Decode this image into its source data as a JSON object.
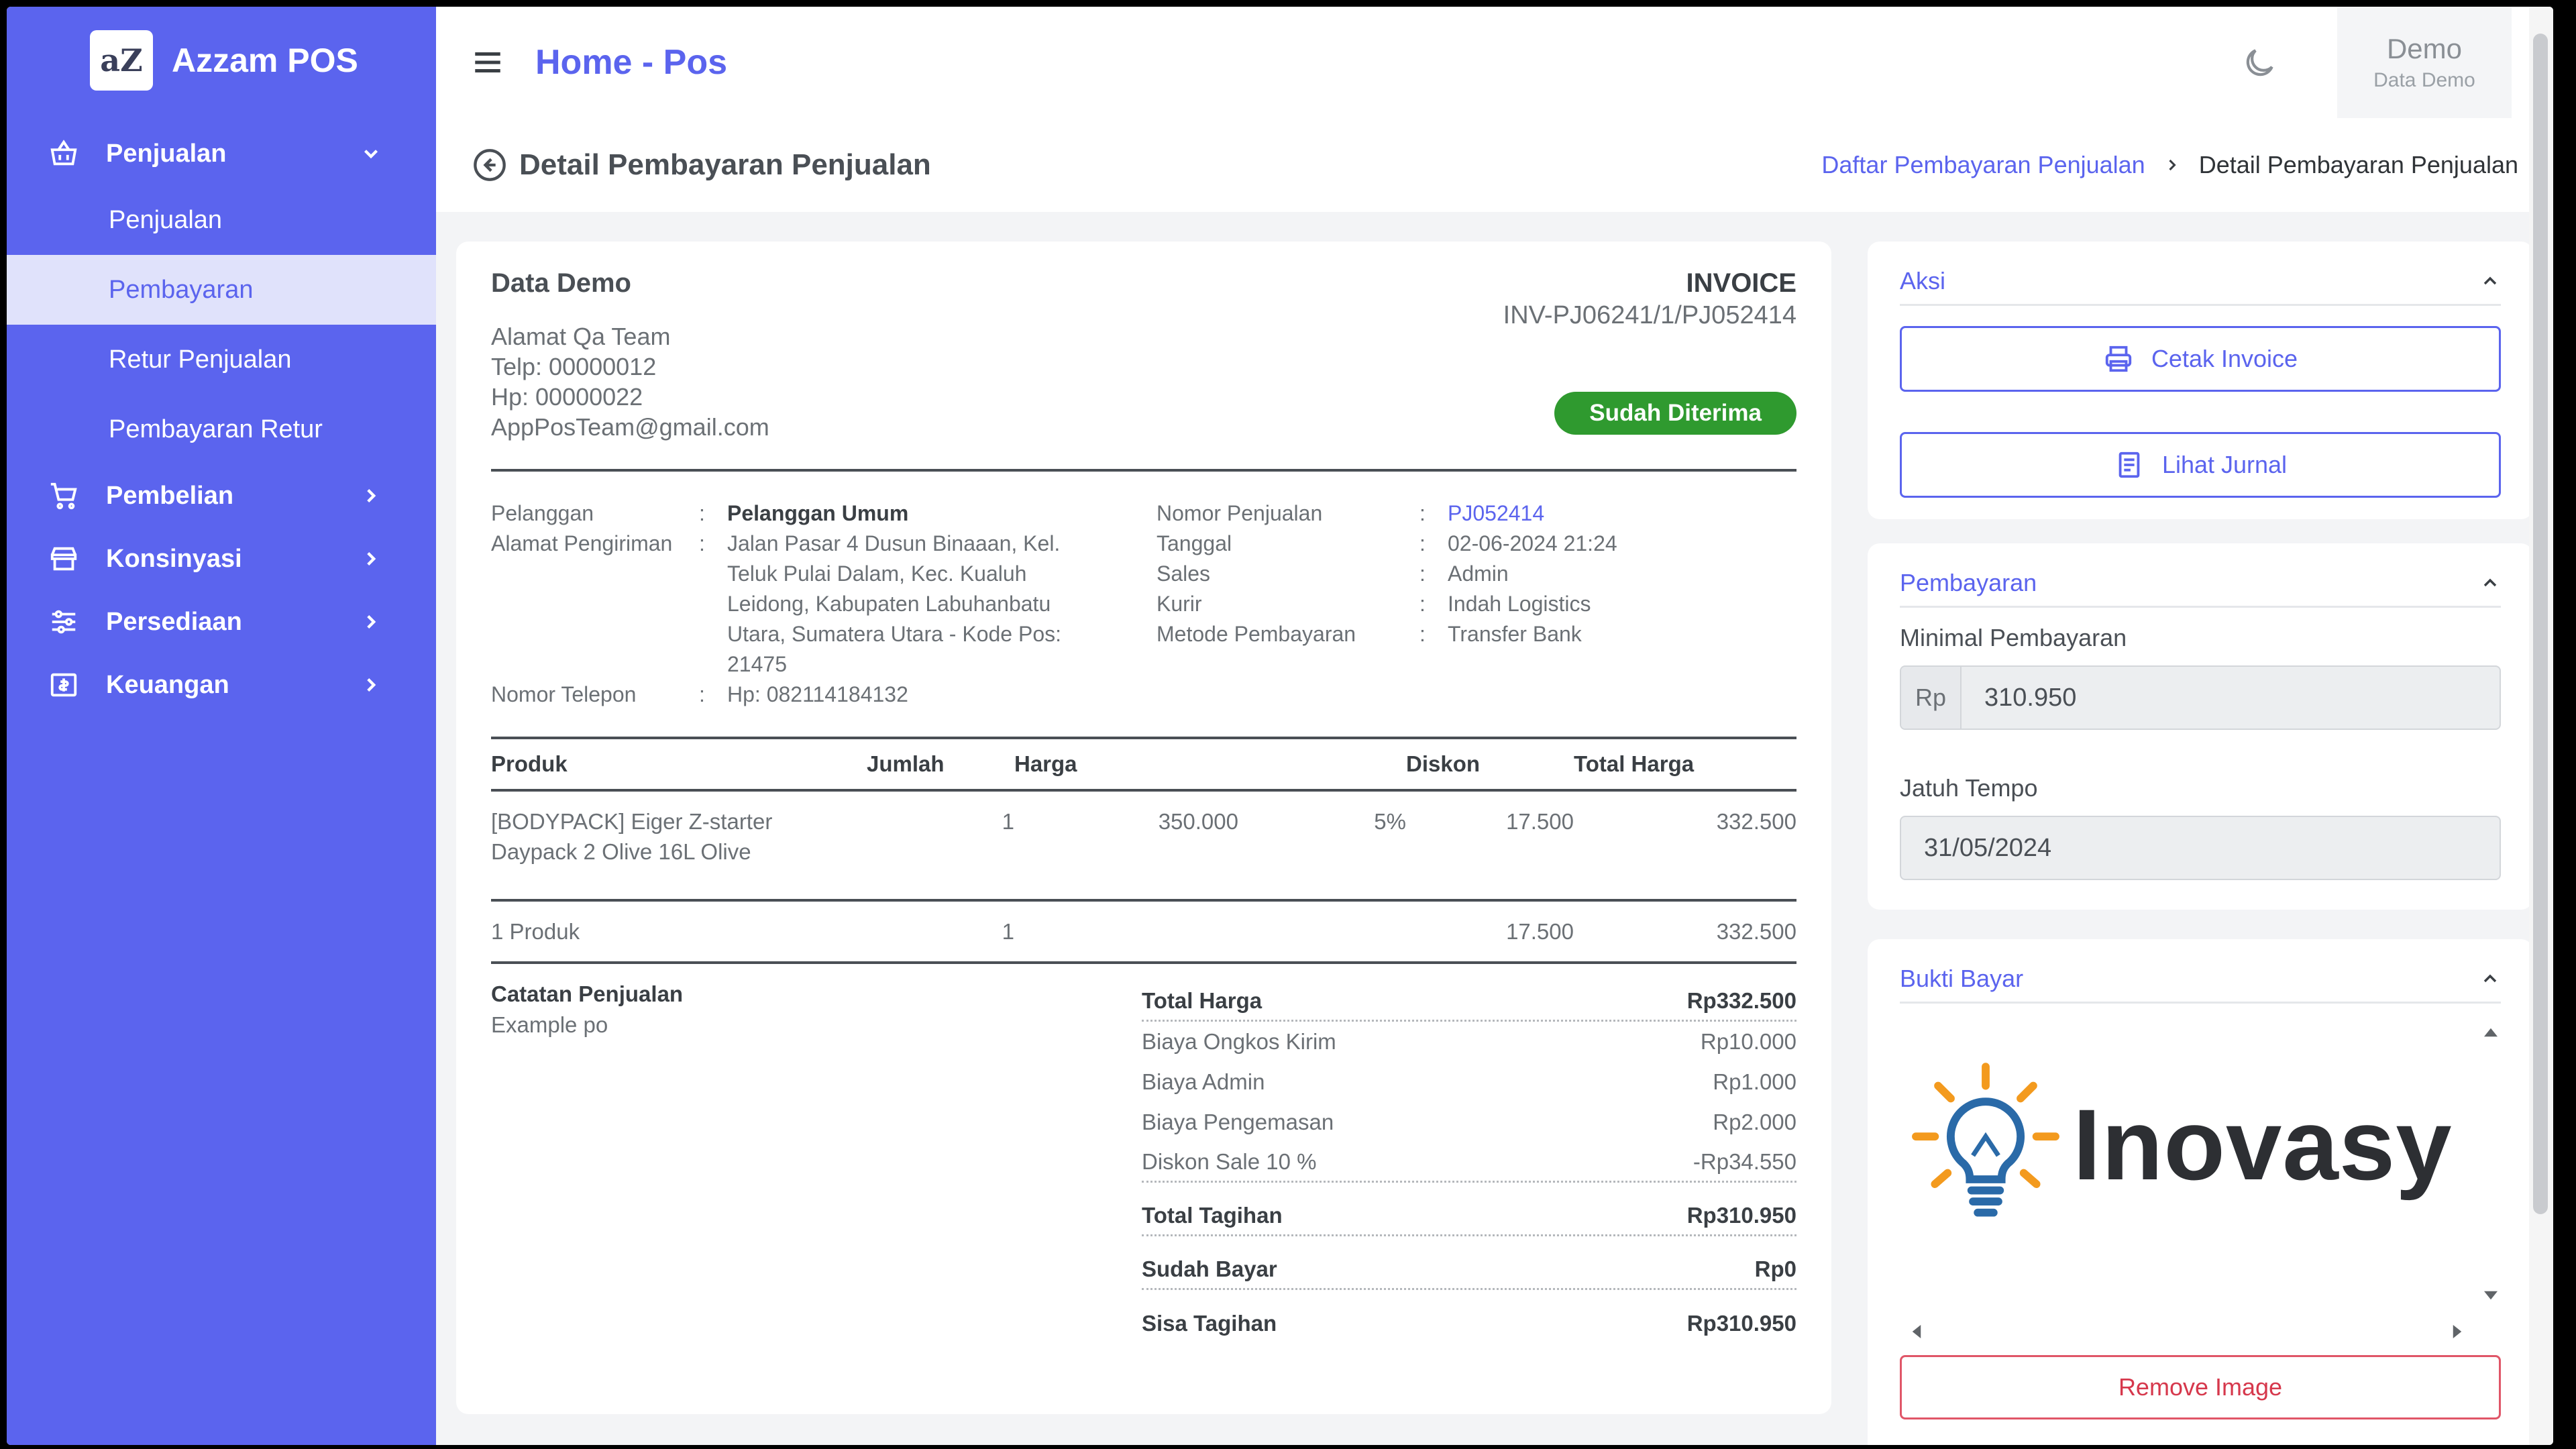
{
  "sidebar": {
    "brand_logo": "aZ",
    "brand_name": "Azzam POS",
    "groups": [
      {
        "label": "Penjualan",
        "icon": "basket-icon"
      },
      {
        "label": "Pembelian",
        "icon": "cart-icon"
      },
      {
        "label": "Konsinyasi",
        "icon": "store-icon"
      },
      {
        "label": "Persediaan",
        "icon": "sliders-icon"
      },
      {
        "label": "Keuangan",
        "icon": "money-icon"
      }
    ],
    "penjualan_items": [
      "Penjualan",
      "Pembayaran",
      "Retur Penjualan",
      "Pembayaran Retur"
    ],
    "active_item": "Pembayaran"
  },
  "topbar": {
    "title": "Home - Pos",
    "user_name": "Demo",
    "user_role": "Data Demo"
  },
  "subheader": {
    "title": "Detail Pembayaran Penjualan",
    "breadcrumb_link": "Daftar Pembayaran Penjualan",
    "breadcrumb_current": "Detail Pembayaran Penjualan"
  },
  "invoice": {
    "company": "Data Demo",
    "address": "Alamat Qa Team",
    "telp": "Telp: 00000012",
    "hp": "Hp: 00000022",
    "email": "AppPosTeam@gmail.com",
    "invoice_label": "INVOICE",
    "invoice_no": "INV-PJ06241/1/PJ052414",
    "status": "Sudah Diterima",
    "info_left": {
      "pelanggan_label": "Pelanggan",
      "pelanggan": "Pelanggan Umum",
      "alamat_label": "Alamat Pengiriman",
      "alamat": "Jalan Pasar 4 Dusun Binaaan, Kel. Teluk Pulai Dalam, Kec. Kualuh Leidong, Kabupaten Labuhanbatu Utara, Sumatera Utara - Kode Pos: 21475",
      "telepon_label": "Nomor Telepon",
      "telepon": "Hp: 082114184132"
    },
    "info_right": {
      "nomor_label": "Nomor Penjualan",
      "nomor": "PJ052414",
      "tanggal_label": "Tanggal",
      "tanggal": "02-06-2024 21:24",
      "sales_label": "Sales",
      "sales": "Admin",
      "kurir_label": "Kurir",
      "kurir": "Indah Logistics",
      "metode_label": "Metode Pembayaran",
      "metode": "Transfer Bank"
    },
    "columns": {
      "produk": "Produk",
      "jumlah": "Jumlah",
      "harga": "Harga",
      "diskon": "Diskon",
      "total": "Total Harga"
    },
    "items": [
      {
        "produk": "[BODYPACK] Eiger Z-starter Daypack 2 Olive 16L Olive",
        "jumlah": "1",
        "harga": "350.000",
        "pct": "5%",
        "diskon": "17.500",
        "total": "332.500"
      }
    ],
    "footer_row": {
      "produk": "1 Produk",
      "jumlah": "1",
      "diskon": "17.500",
      "total": "332.500"
    },
    "notes_title": "Catatan Penjualan",
    "notes": "Example po",
    "totals": {
      "total_harga_label": "Total Harga",
      "total_harga": "Rp332.500",
      "ongkir_label": "Biaya Ongkos Kirim",
      "ongkir": "Rp10.000",
      "admin_label": "Biaya Admin",
      "admin": "Rp1.000",
      "kemas_label": "Biaya Pengemasan",
      "kemas": "Rp2.000",
      "diskon_label": "Diskon Sale 10 %",
      "diskon": "-Rp34.550",
      "tagihan_label": "Total Tagihan",
      "tagihan": "Rp310.950",
      "bayar_label": "Sudah Bayar",
      "bayar": "Rp0",
      "sisa_label": "Sisa Tagihan",
      "sisa": "Rp310.950"
    }
  },
  "aksi": {
    "title": "Aksi",
    "cetak": "Cetak Invoice",
    "jurnal": "Lihat Jurnal"
  },
  "pembayaran": {
    "title": "Pembayaran",
    "minimal_label": "Minimal Pembayaran",
    "currency": "Rp",
    "minimal_value": "310.950",
    "jatuh_label": "Jatuh Tempo",
    "jatuh_value": "31/05/2024"
  },
  "bukti": {
    "title": "Bukti Bayar",
    "logo_text": "Inovasy",
    "remove": "Remove Image"
  },
  "colors": {
    "accent": "#5b64ee",
    "success": "#2f9a2f",
    "danger": "#d6384c"
  }
}
